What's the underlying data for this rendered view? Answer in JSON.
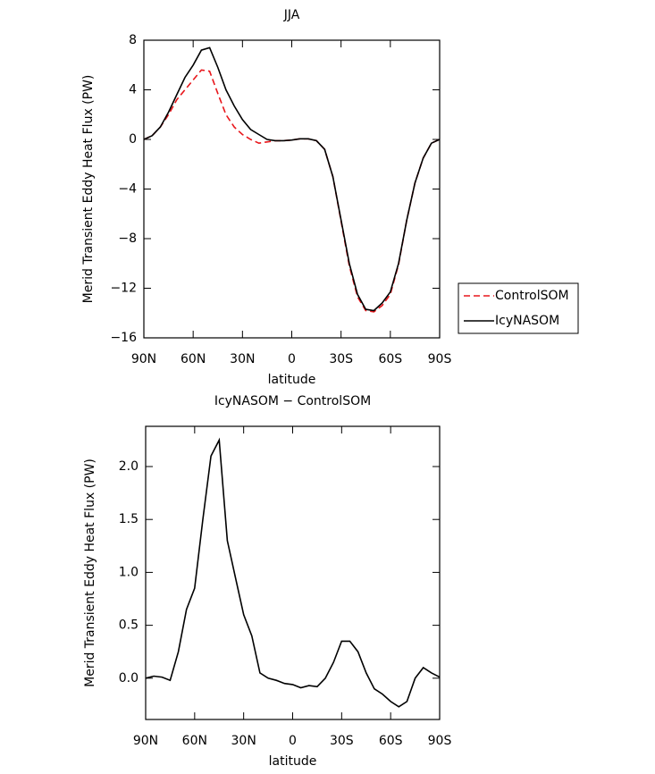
{
  "chart_data": [
    {
      "type": "line",
      "title": "JJA",
      "x_label": "latitude",
      "y_label": "Merid Transient Eddy Heat Flux (PW)",
      "x": [
        90,
        85,
        80,
        75,
        70,
        65,
        60,
        55,
        50,
        45,
        40,
        35,
        30,
        25,
        20,
        15,
        10,
        5,
        0,
        -5,
        -10,
        -15,
        -20,
        -25,
        -30,
        -35,
        -40,
        -45,
        -50,
        -55,
        -60,
        -65,
        -70,
        -75,
        -80,
        -85,
        -90
      ],
      "xlim": [
        90,
        -90
      ],
      "xticks": [
        {
          "value": 90,
          "label": "90N"
        },
        {
          "value": 60,
          "label": "60N"
        },
        {
          "value": 30,
          "label": "30N"
        },
        0,
        {
          "value": -30,
          "label": "30S"
        },
        {
          "value": -60,
          "label": "60S"
        },
        {
          "value": -90,
          "label": "90S"
        }
      ],
      "ylim": [
        -16,
        8
      ],
      "yticks": [
        {
          "value": -16,
          "label": "−16"
        },
        {
          "value": -12,
          "label": "−12"
        },
        {
          "value": -8,
          "label": "−8"
        },
        {
          "value": -4,
          "label": "−4"
        },
        0,
        4,
        8
      ],
      "legend": "right",
      "series": [
        {
          "name": "ControlSOM",
          "color": "#e8161b",
          "dash": true,
          "values": [
            0,
            0.3,
            1.0,
            2.0,
            3.2,
            4.0,
            4.8,
            5.6,
            5.5,
            3.7,
            2.0,
            1.0,
            0.4,
            0.0,
            -0.3,
            -0.2,
            -0.1,
            -0.1,
            -0.05,
            0.05,
            0.05,
            -0.1,
            -0.8,
            -3.0,
            -6.6,
            -10.2,
            -12.7,
            -13.8,
            -13.9,
            -13.4,
            -12.5,
            -10.1,
            -6.5,
            -3.5,
            -1.5,
            -0.3,
            0
          ]
        },
        {
          "name": "IcyNASOM",
          "color": "#000000",
          "dash": false,
          "values": [
            0,
            0.3,
            1.0,
            2.2,
            3.6,
            5.0,
            6.0,
            7.2,
            7.4,
            5.8,
            4.0,
            2.7,
            1.6,
            0.8,
            0.4,
            0.0,
            -0.1,
            -0.1,
            -0.05,
            0.05,
            0.05,
            -0.1,
            -0.8,
            -3.0,
            -6.5,
            -10.0,
            -12.5,
            -13.7,
            -13.8,
            -13.2,
            -12.3,
            -10.0,
            -6.5,
            -3.5,
            -1.5,
            -0.3,
            0
          ]
        }
      ]
    },
    {
      "type": "line",
      "title": "IcyNASOM − ControlSOM",
      "x_label": "latitude",
      "y_label": "Merid Transient Eddy Heat Flux (PW)",
      "x": [
        90,
        85,
        80,
        75,
        70,
        65,
        60,
        55,
        50,
        45,
        40,
        35,
        30,
        25,
        20,
        15,
        10,
        5,
        0,
        -5,
        -10,
        -15,
        -20,
        -25,
        -30,
        -35,
        -40,
        -45,
        -50,
        -55,
        -60,
        -65,
        -70,
        -75,
        -80,
        -85,
        -90
      ],
      "xlim": [
        90,
        -90
      ],
      "xticks": [
        {
          "value": 90,
          "label": "90N"
        },
        {
          "value": 60,
          "label": "60N"
        },
        {
          "value": 30,
          "label": "30N"
        },
        0,
        {
          "value": -30,
          "label": "30S"
        },
        {
          "value": -60,
          "label": "60S"
        },
        {
          "value": -90,
          "label": "90S"
        }
      ],
      "ylim": [
        -0.39,
        2.38
      ],
      "yticks": [
        {
          "value": 0,
          "label": "0.0"
        },
        0.5,
        {
          "value": 1,
          "label": "1.0"
        },
        1.5,
        {
          "value": 2,
          "label": "2.0"
        }
      ],
      "series": [
        {
          "color": "#000000",
          "dash": false,
          "values": [
            0.0,
            0.02,
            0.01,
            -0.02,
            0.25,
            0.65,
            0.85,
            1.5,
            2.1,
            2.25,
            1.3,
            0.95,
            0.6,
            0.4,
            0.05,
            0.0,
            -0.02,
            -0.05,
            -0.06,
            -0.09,
            -0.07,
            -0.08,
            0.0,
            0.15,
            0.35,
            0.35,
            0.25,
            0.05,
            -0.1,
            -0.15,
            -0.22,
            -0.27,
            -0.22,
            0.0,
            0.1,
            0.05,
            0.01
          ]
        }
      ]
    }
  ]
}
